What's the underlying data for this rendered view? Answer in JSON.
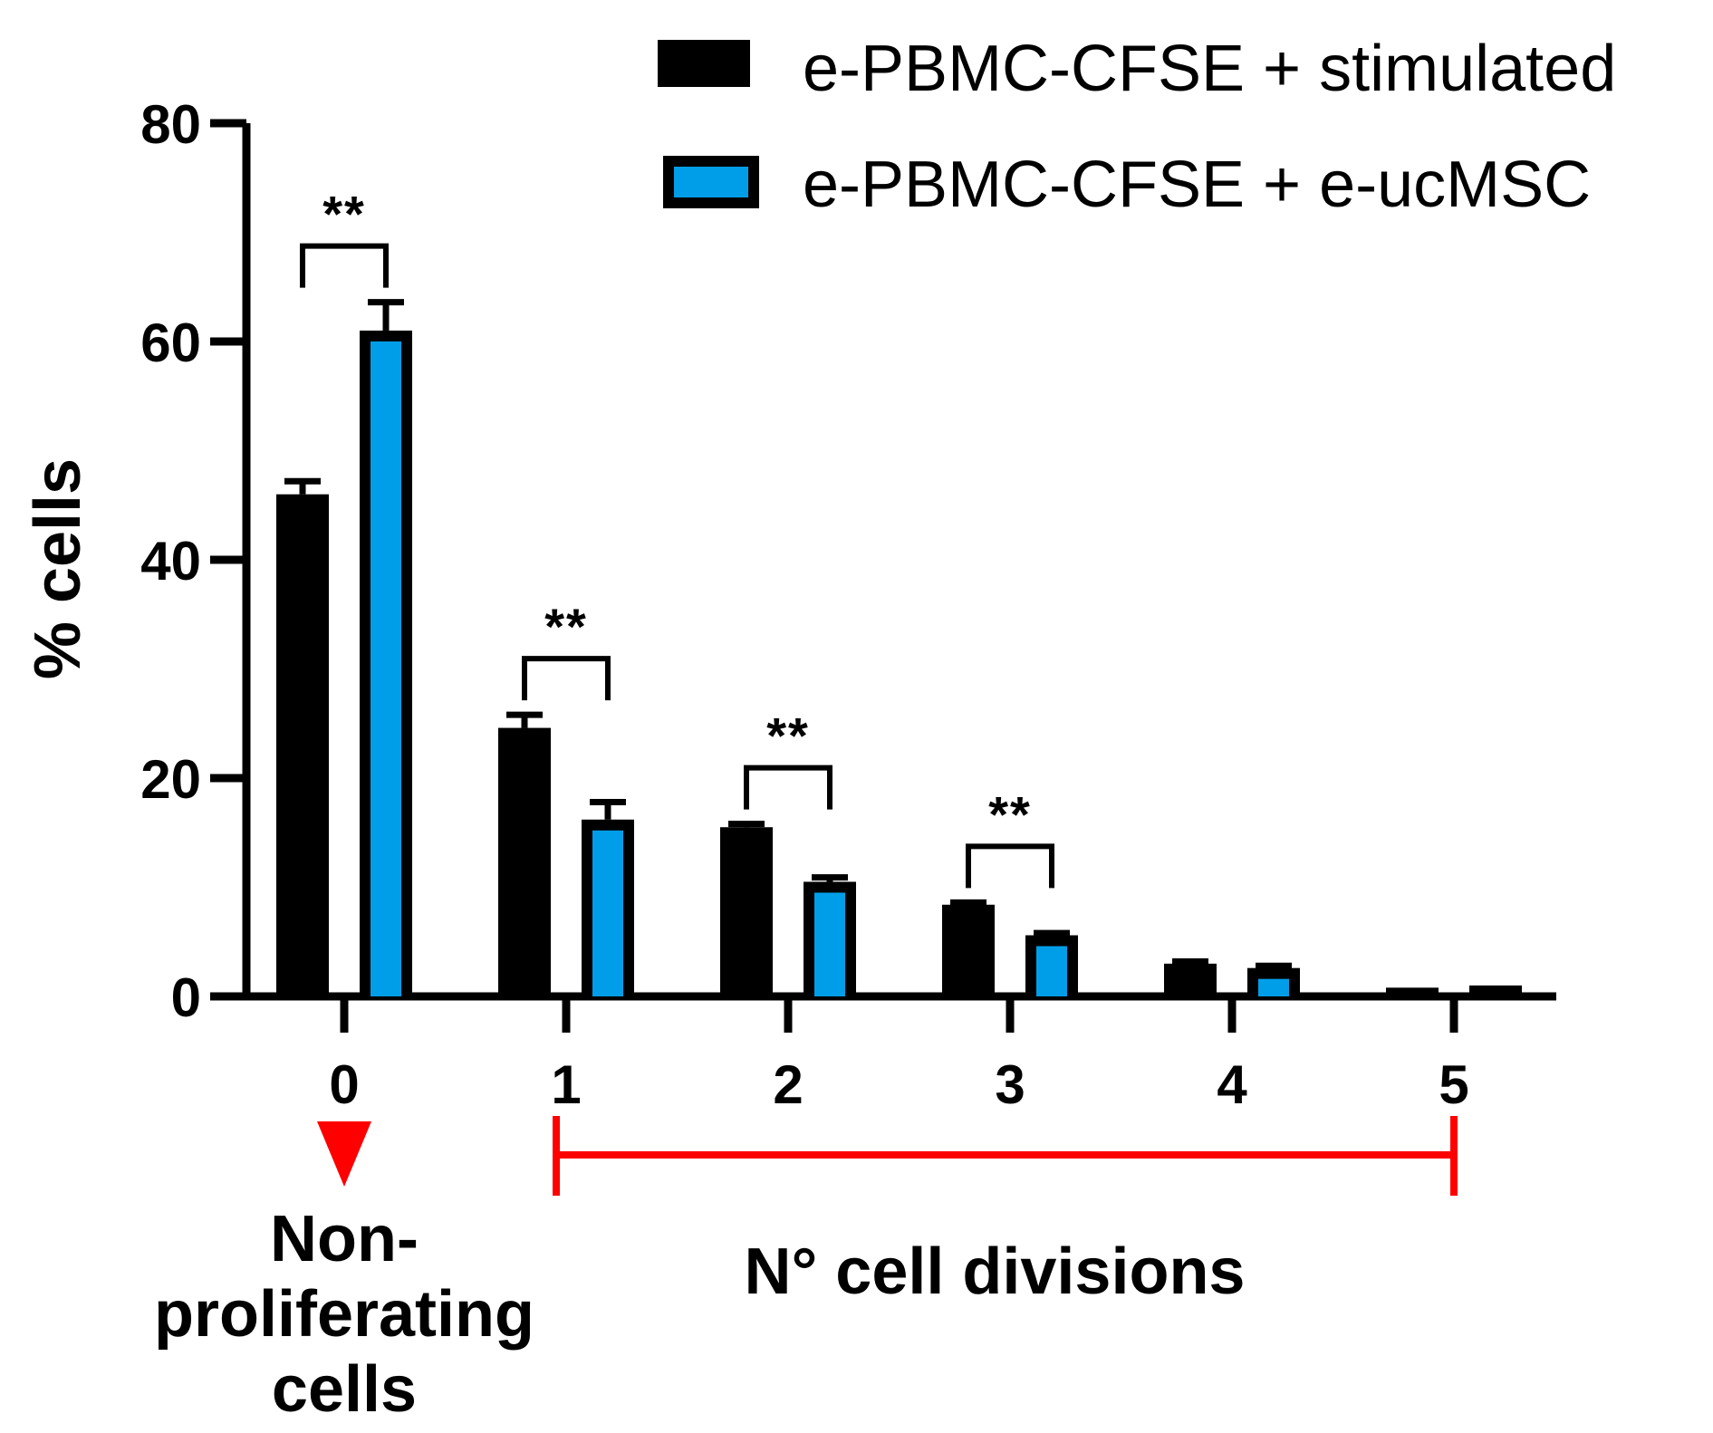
{
  "chart_data": {
    "type": "bar",
    "title": "",
    "xlabel": "N° cell divisions",
    "ylabel": "% cells",
    "categories": [
      "0",
      "1",
      "2",
      "3",
      "4",
      "5"
    ],
    "ylim": [
      0,
      80
    ],
    "yticks": [
      "0",
      "20",
      "40",
      "60",
      "80"
    ],
    "series": [
      {
        "name": "e-PBMC-CFSE + stimulated",
        "color": "#000000",
        "values": [
          46,
          24.6,
          15.5,
          8.4,
          3.0,
          0.8
        ],
        "errors": [
          1.2,
          1.2,
          0.3,
          0.2,
          0.2,
          0.1
        ]
      },
      {
        "name": "e-PBMC-CFSE + e-ucMSC",
        "color": "#009ee8",
        "values": [
          61,
          16.2,
          10.5,
          5.6,
          2.6,
          1.0
        ],
        "errors": [
          2.6,
          1.6,
          0.4,
          0.2,
          0.2,
          0.1
        ]
      }
    ],
    "significance": [
      {
        "category": "0",
        "label": "**"
      },
      {
        "category": "1",
        "label": "**"
      },
      {
        "category": "2",
        "label": "**"
      },
      {
        "category": "3",
        "label": "**"
      }
    ],
    "annotations": {
      "non_proliferating": [
        "Non-",
        "proliferating",
        "cells"
      ],
      "accent_color": "#ff0000"
    },
    "legend_position": "top-right"
  }
}
